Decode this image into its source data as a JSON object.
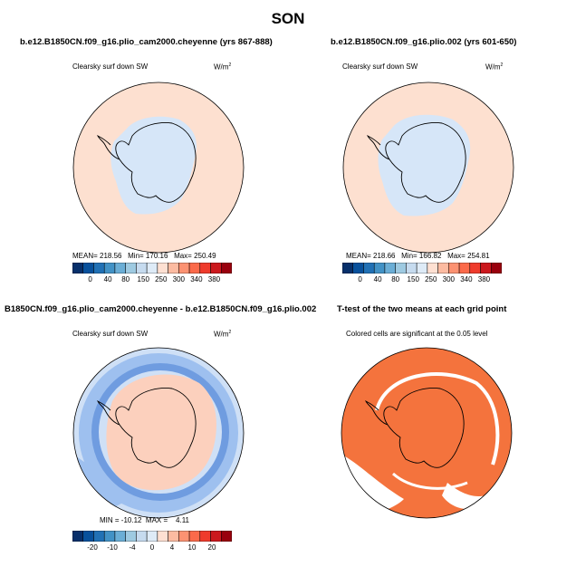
{
  "page": {
    "title": "SON"
  },
  "panels": [
    {
      "title": "b.e12.B1850CN.f09_g16.plio_cam2000.cheyenne (yrs 867-888)",
      "variable": "Clearsky surf down SW",
      "units_base": "W/m",
      "units_exp": "2",
      "stats_text": "MEAN= 218.56   Min= 170.16   Max= 250.49",
      "colorbar": {
        "colors": [
          "#08306b",
          "#08519c",
          "#2171b5",
          "#4292c6",
          "#6baed6",
          "#9ecae1",
          "#c6dbef",
          "#deebf7",
          "#fee0d2",
          "#fcbba1",
          "#fc9272",
          "#fb6a4a",
          "#ef3b2c",
          "#cb181d",
          "#99000d"
        ],
        "labels": [
          "0",
          "40",
          "80",
          "150",
          "250",
          "300",
          "340",
          "380"
        ]
      }
    },
    {
      "title": "b.e12.B1850CN.f09_g16.plio.002 (yrs 601-650)",
      "variable": "Clearsky surf down SW",
      "units_base": "W/m",
      "units_exp": "2",
      "stats_text": "MEAN= 218.66   Min= 166.82   Max= 254.81",
      "colorbar": {
        "colors": [
          "#08306b",
          "#08519c",
          "#2171b5",
          "#4292c6",
          "#6baed6",
          "#9ecae1",
          "#c6dbef",
          "#deebf7",
          "#fee0d2",
          "#fcbba1",
          "#fc9272",
          "#fb6a4a",
          "#ef3b2c",
          "#cb181d",
          "#99000d"
        ],
        "labels": [
          "0",
          "40",
          "80",
          "150",
          "250",
          "300",
          "340",
          "380"
        ]
      }
    },
    {
      "title": "B1850CN.f09_g16.plio_cam2000.cheyenne - b.e12.B1850CN.f09_g16.plio.002",
      "variable": "Clearsky surf down SW",
      "units_base": "W/m",
      "units_exp": "2",
      "stats_text": "MIN = -10.12  MAX =    4.11",
      "colorbar": {
        "colors": [
          "#08306b",
          "#08519c",
          "#2171b5",
          "#4292c6",
          "#6baed6",
          "#9ecae1",
          "#c6dbef",
          "#deebf7",
          "#fee0d2",
          "#fcbba1",
          "#fc9272",
          "#fb6a4a",
          "#ef3b2c",
          "#cb181d",
          "#99000d"
        ],
        "labels": [
          "-20",
          "-10",
          "-4",
          "0",
          "4",
          "10",
          "20"
        ]
      }
    },
    {
      "title": "T-test of the two means at each grid point",
      "variable": "Colored cells are significant at the 0.05 level"
    }
  ],
  "map_colors": {
    "ocean_field": "#fde0d0",
    "land_low": "#d6e6f8",
    "diff_strong_blue": "#6f9ce0",
    "diff_mid_blue": "#9ec0ef",
    "diff_light_blue": "#cfe0f6",
    "diff_pink": "#fcd0bd",
    "ttest_orange": "#f4733d",
    "coast": "#000000"
  }
}
